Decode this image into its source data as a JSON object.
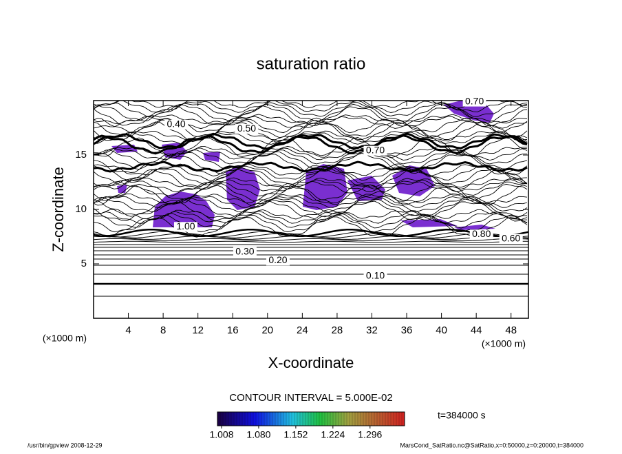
{
  "chart_data": {
    "type": "contour",
    "title": "saturation ratio",
    "x_label": "X-coordinate",
    "y_label": "Z-coordinate",
    "x_unit": "(×1000 m)",
    "y_unit": "(×1000 m)",
    "xlim": [
      0,
      50
    ],
    "ylim": [
      0,
      20
    ],
    "xticks": [
      4,
      8,
      12,
      16,
      20,
      24,
      28,
      32,
      36,
      40,
      44,
      48
    ],
    "yticks": [
      5,
      10,
      15
    ],
    "contour_labels": [
      {
        "value": 0.4,
        "label": "0.40",
        "x": 9.5,
        "z": 17.8
      },
      {
        "value": 0.5,
        "label": "0.50",
        "x": 17.6,
        "z": 17.4
      },
      {
        "value": 0.7,
        "label": "0.70",
        "x": 43.8,
        "z": 19.9
      },
      {
        "value": 0.7,
        "label": "0.70",
        "x": 32.4,
        "z": 15.4
      },
      {
        "value": 1.0,
        "label": "1.00",
        "x": 10.6,
        "z": 8.4
      },
      {
        "value": 0.8,
        "label": "0.80",
        "x": 44.6,
        "z": 7.7
      },
      {
        "value": 0.6,
        "label": "0.60",
        "x": 48.0,
        "z": 7.3
      },
      {
        "value": 0.3,
        "label": "0.30",
        "x": 17.4,
        "z": 6.1
      },
      {
        "value": 0.2,
        "label": "0.20",
        "x": 21.2,
        "z": 5.3
      },
      {
        "value": 0.1,
        "label": "0.10",
        "x": 32.4,
        "z": 3.86
      }
    ],
    "contour_interval_text": "CONTOUR INTERVAL = 5.000E-02",
    "colorbar": {
      "clim": [
        1.0,
        1.363
      ],
      "ticks": [
        1.008,
        {
          "value": 1.08,
          "label": "1.080"
        },
        1.152,
        1.224,
        1.296
      ]
    },
    "time_label": "t=384000 s",
    "footer_left": "/usr/bin/gpview   2008-12-29",
    "footer_right": "MarsCond_SatRatio.nc@SatRatio,x=0:50000,z=0:20000,t=384000"
  }
}
